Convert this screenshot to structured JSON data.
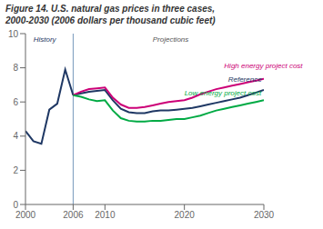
{
  "chart_data": {
    "type": "line",
    "title": "Figure 14. U.S. natural gas prices in three cases,",
    "subtitle": "2000-2030 (2006 dollars per thousand cubic feet)",
    "xlim": [
      2000,
      2030
    ],
    "xticks": [
      2000,
      2006,
      2010,
      2020,
      2030
    ],
    "ylim": [
      0,
      10
    ],
    "yticks": [
      0,
      2,
      4,
      6,
      8,
      10
    ],
    "grid": false,
    "legend": false,
    "series": [
      {
        "name": "History",
        "color": "#1f3864",
        "x": [
          2000,
          2001,
          2002,
          2003,
          2004,
          2005,
          2006
        ],
        "values": [
          4.3,
          3.7,
          3.55,
          5.55,
          5.9,
          7.9,
          6.4
        ]
      },
      {
        "name": "Reference",
        "color": "#1f3864",
        "x": [
          2006,
          2007,
          2008,
          2009,
          2010,
          2011,
          2012,
          2013,
          2014,
          2015,
          2016,
          2017,
          2018,
          2019,
          2020,
          2021,
          2022,
          2023,
          2024,
          2025,
          2026,
          2027,
          2028,
          2029,
          2030
        ],
        "values": [
          6.4,
          6.5,
          6.6,
          6.65,
          6.7,
          6.1,
          5.6,
          5.4,
          5.35,
          5.35,
          5.45,
          5.5,
          5.5,
          5.55,
          5.6,
          5.65,
          5.75,
          5.85,
          5.95,
          6.05,
          6.15,
          6.25,
          6.4,
          6.55,
          6.7
        ]
      },
      {
        "name": "High energy project cost",
        "color": "#cc0077",
        "x": [
          2006,
          2007,
          2008,
          2009,
          2010,
          2011,
          2012,
          2013,
          2014,
          2015,
          2016,
          2017,
          2018,
          2019,
          2020,
          2021,
          2022,
          2023,
          2024,
          2025,
          2026,
          2027,
          2028,
          2029,
          2030
        ],
        "values": [
          6.4,
          6.6,
          6.75,
          6.8,
          6.85,
          6.25,
          5.85,
          5.65,
          5.65,
          5.7,
          5.8,
          5.9,
          6.0,
          6.05,
          6.1,
          6.25,
          6.45,
          6.6,
          6.75,
          6.85,
          6.95,
          7.05,
          7.15,
          7.25,
          7.35
        ]
      },
      {
        "name": "Low energy project cost",
        "color": "#00aa44",
        "x": [
          2006,
          2007,
          2008,
          2009,
          2010,
          2011,
          2012,
          2013,
          2014,
          2015,
          2016,
          2017,
          2018,
          2019,
          2020,
          2021,
          2022,
          2023,
          2024,
          2025,
          2026,
          2027,
          2028,
          2029,
          2030
        ],
        "values": [
          6.4,
          6.3,
          6.15,
          6.05,
          6.1,
          5.5,
          5.05,
          4.9,
          4.85,
          4.85,
          4.9,
          4.9,
          4.95,
          5.0,
          5.0,
          5.1,
          5.2,
          5.35,
          5.5,
          5.6,
          5.7,
          5.8,
          5.9,
          6.0,
          6.1
        ]
      }
    ],
    "reference_lines": [
      {
        "x": 2006,
        "color": "#7799bb"
      }
    ],
    "annotations": [
      {
        "text": "History",
        "x": 2001.0,
        "y": 9.5,
        "color": "#1f3864"
      },
      {
        "text": "Projections",
        "x": 2016,
        "y": 9.5,
        "color": "#555555"
      },
      {
        "text": "High energy project cost",
        "x": 2025,
        "y": 8.0,
        "color": "#cc0077"
      },
      {
        "text": "Reference",
        "x": 2025.5,
        "y": 7.2,
        "color": "#1f3864"
      },
      {
        "text": "Low energy project cost",
        "x": 2020,
        "y": 6.4,
        "color": "#00aa44"
      }
    ]
  }
}
